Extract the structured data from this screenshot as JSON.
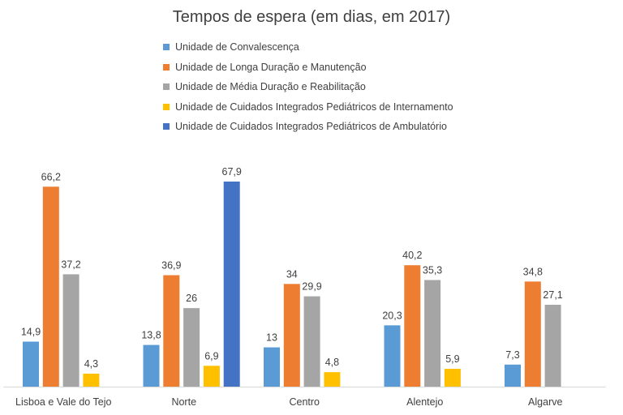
{
  "chart_data": {
    "type": "bar",
    "title": "Tempos de espera (em dias, em 2017)",
    "xlabel": "",
    "ylabel": "",
    "ylim": [
      0,
      75
    ],
    "grid": false,
    "legend_position": "top",
    "categories": [
      "Lisboa e Vale do Tejo",
      "Norte",
      "Centro",
      "Alentejo",
      "Algarve"
    ],
    "series": [
      {
        "name": "Unidade de Convalescença",
        "color": "#5B9BD5",
        "values": [
          14.9,
          13.8,
          13,
          20.3,
          7.3
        ],
        "labels": [
          "14,9",
          "13,8",
          "13",
          "20,3",
          "7,3"
        ]
      },
      {
        "name": "Unidade de Longa Duração e Manutenção",
        "color": "#ED7D31",
        "values": [
          66.2,
          36.9,
          34,
          40.2,
          34.8
        ],
        "labels": [
          "66,2",
          "36,9",
          "34",
          "40,2",
          "34,8"
        ]
      },
      {
        "name": "Unidade de Média Duração e Reabilitação",
        "color": "#A5A5A5",
        "values": [
          37.2,
          26,
          29.9,
          35.3,
          27.1
        ],
        "labels": [
          "37,2",
          "26",
          "29,9",
          "35,3",
          "27,1"
        ]
      },
      {
        "name": "Unidade de Cuidados Integrados Pediátricos de Internamento",
        "color": "#FFC000",
        "values": [
          4.3,
          6.9,
          4.8,
          5.9,
          null
        ],
        "labels": [
          "4,3",
          "6,9",
          "4,8",
          "5,9",
          null
        ]
      },
      {
        "name": "Unidade de Cuidados Integrados Pediátricos de Ambulatório",
        "color": "#4472C4",
        "values": [
          null,
          67.9,
          null,
          null,
          null
        ],
        "labels": [
          null,
          "67,9",
          null,
          null,
          null
        ]
      }
    ]
  }
}
